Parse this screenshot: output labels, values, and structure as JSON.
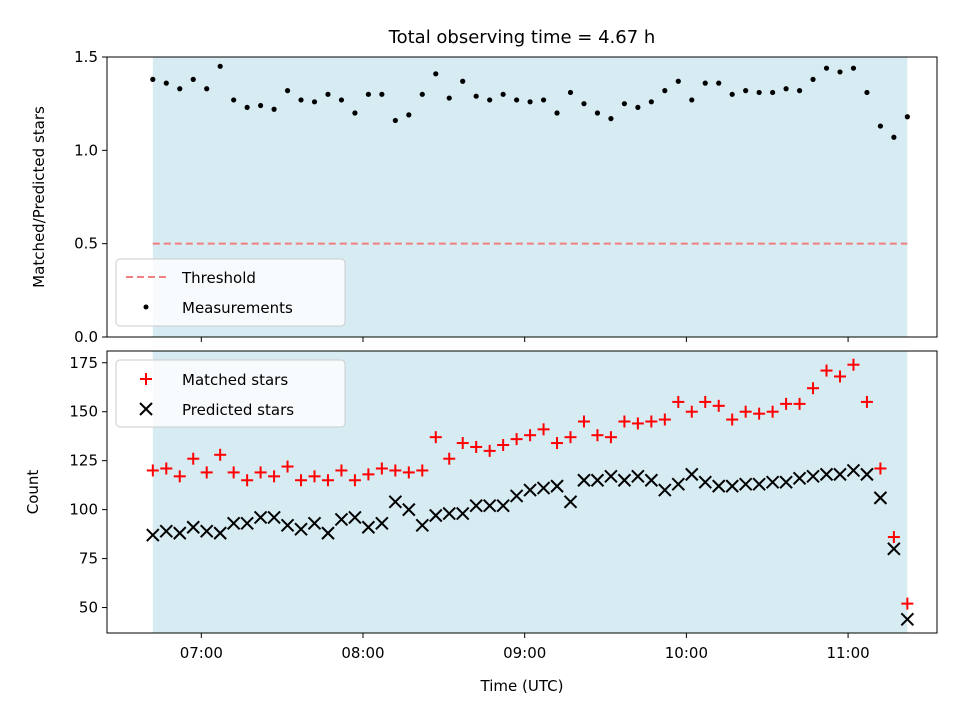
{
  "chart_data": [
    {
      "type": "scatter",
      "title": "Total observing time = 4.67 h",
      "xlabel": "",
      "ylabel": "Matched/Predicted stars",
      "xlim": [
        "06:25",
        "11:33"
      ],
      "ylim": [
        0.0,
        1.5
      ],
      "yticks": [
        "0.0",
        "0.5",
        "1.0",
        "1.5"
      ],
      "grid": false,
      "legend_position": "lower-left",
      "observing_window": [
        "06:42",
        "11:22"
      ],
      "shade_color": "#add8e6",
      "threshold": {
        "name": "Threshold",
        "value": 0.5,
        "color": "#f08080",
        "style": "dashed"
      },
      "series": [
        {
          "name": "Measurements",
          "color": "#000000",
          "marker": "dot",
          "x": [
            "06:42",
            "06:47",
            "06:52",
            "06:57",
            "07:02",
            "07:07",
            "07:12",
            "07:17",
            "07:22",
            "07:27",
            "07:32",
            "07:37",
            "07:42",
            "07:47",
            "07:52",
            "07:57",
            "08:02",
            "08:07",
            "08:12",
            "08:17",
            "08:22",
            "08:27",
            "08:32",
            "08:37",
            "08:42",
            "08:47",
            "08:52",
            "08:57",
            "09:02",
            "09:07",
            "09:12",
            "09:17",
            "09:22",
            "09:27",
            "09:32",
            "09:37",
            "09:42",
            "09:47",
            "09:52",
            "09:57",
            "10:02",
            "10:07",
            "10:12",
            "10:17",
            "10:22",
            "10:27",
            "10:32",
            "10:37",
            "10:42",
            "10:47",
            "10:52",
            "10:57",
            "11:02",
            "11:07",
            "11:12",
            "11:17",
            "11:22"
          ],
          "y": [
            1.38,
            1.36,
            1.33,
            1.38,
            1.33,
            1.45,
            1.27,
            1.23,
            1.24,
            1.22,
            1.32,
            1.27,
            1.26,
            1.3,
            1.27,
            1.2,
            1.3,
            1.3,
            1.16,
            1.19,
            1.3,
            1.41,
            1.28,
            1.37,
            1.29,
            1.27,
            1.3,
            1.27,
            1.26,
            1.27,
            1.2,
            1.31,
            1.25,
            1.2,
            1.17,
            1.25,
            1.23,
            1.26,
            1.32,
            1.37,
            1.27,
            1.36,
            1.36,
            1.3,
            1.32,
            1.31,
            1.31,
            1.33,
            1.32,
            1.38,
            1.44,
            1.42,
            1.44,
            1.31,
            1.13,
            1.07,
            1.18
          ]
        }
      ]
    },
    {
      "type": "scatter",
      "title": "",
      "xlabel": "Time (UTC)",
      "ylabel": "Count",
      "xlim": [
        "06:25",
        "11:33"
      ],
      "ylim": [
        37,
        181
      ],
      "yticks": [
        "50",
        "75",
        "100",
        "125",
        "150",
        "175"
      ],
      "xticks": [
        "07:00",
        "08:00",
        "09:00",
        "10:00",
        "11:00"
      ],
      "grid": false,
      "legend_position": "upper-left",
      "observing_window": [
        "06:42",
        "11:22"
      ],
      "shade_color": "#add8e6",
      "series": [
        {
          "name": "Matched stars",
          "color": "#ff0000",
          "marker": "plus",
          "x": [
            "06:42",
            "06:47",
            "06:52",
            "06:57",
            "07:02",
            "07:07",
            "07:12",
            "07:17",
            "07:22",
            "07:27",
            "07:32",
            "07:37",
            "07:42",
            "07:47",
            "07:52",
            "07:57",
            "08:02",
            "08:07",
            "08:12",
            "08:17",
            "08:22",
            "08:27",
            "08:32",
            "08:37",
            "08:42",
            "08:47",
            "08:52",
            "08:57",
            "09:02",
            "09:07",
            "09:12",
            "09:17",
            "09:22",
            "09:27",
            "09:32",
            "09:37",
            "09:42",
            "09:47",
            "09:52",
            "09:57",
            "10:02",
            "10:07",
            "10:12",
            "10:17",
            "10:22",
            "10:27",
            "10:32",
            "10:37",
            "10:42",
            "10:47",
            "10:52",
            "10:57",
            "11:02",
            "11:07",
            "11:12",
            "11:17",
            "11:22"
          ],
          "y": [
            120,
            121,
            117,
            126,
            119,
            128,
            119,
            115,
            119,
            117,
            122,
            115,
            117,
            115,
            120,
            115,
            118,
            121,
            120,
            119,
            120,
            137,
            126,
            134,
            132,
            130,
            133,
            136,
            138,
            141,
            134,
            137,
            145,
            138,
            137,
            145,
            144,
            145,
            146,
            155,
            150,
            155,
            153,
            146,
            150,
            149,
            150,
            154,
            154,
            162,
            171,
            168,
            174,
            155,
            121,
            86,
            52
          ]
        },
        {
          "name": "Predicted stars",
          "color": "#000000",
          "marker": "x",
          "x": [
            "06:42",
            "06:47",
            "06:52",
            "06:57",
            "07:02",
            "07:07",
            "07:12",
            "07:17",
            "07:22",
            "07:27",
            "07:32",
            "07:37",
            "07:42",
            "07:47",
            "07:52",
            "07:57",
            "08:02",
            "08:07",
            "08:12",
            "08:17",
            "08:22",
            "08:27",
            "08:32",
            "08:37",
            "08:42",
            "08:47",
            "08:52",
            "08:57",
            "09:02",
            "09:07",
            "09:12",
            "09:17",
            "09:22",
            "09:27",
            "09:32",
            "09:37",
            "09:42",
            "09:47",
            "09:52",
            "09:57",
            "10:02",
            "10:07",
            "10:12",
            "10:17",
            "10:22",
            "10:27",
            "10:32",
            "10:37",
            "10:42",
            "10:47",
            "10:52",
            "10:57",
            "11:02",
            "11:07",
            "11:12",
            "11:17",
            "11:22"
          ],
          "y": [
            87,
            89,
            88,
            91,
            89,
            88,
            93,
            93,
            96,
            96,
            92,
            90,
            93,
            88,
            95,
            96,
            91,
            93,
            104,
            100,
            92,
            97,
            98,
            98,
            102,
            102,
            102,
            107,
            110,
            111,
            112,
            104,
            115,
            115,
            117,
            115,
            117,
            115,
            110,
            113,
            118,
            114,
            112,
            112,
            113,
            113,
            114,
            114,
            116,
            117,
            118,
            118,
            120,
            118,
            106,
            80,
            44
          ]
        }
      ]
    }
  ]
}
